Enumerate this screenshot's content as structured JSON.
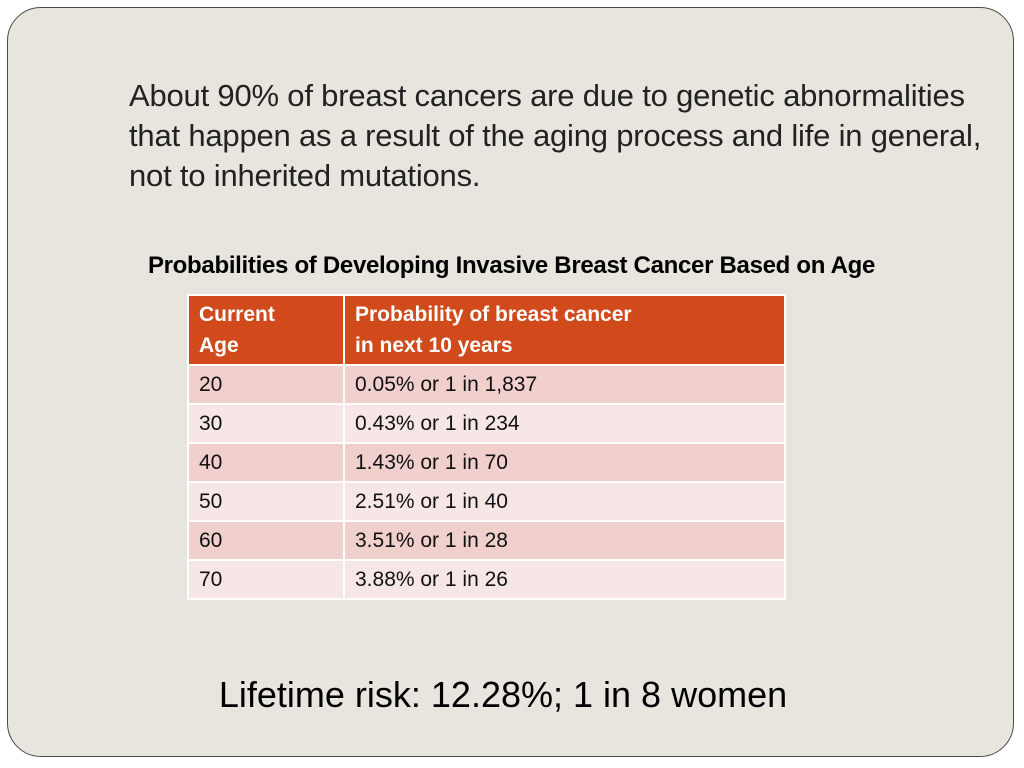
{
  "intro_text": "About 90% of breast cancers are due to genetic abnormalities that happen as a result of the aging process and life in general, not to inherited mutations.",
  "table": {
    "title": "Probabilities of Developing Invasive Breast Cancer Based on Age",
    "header_color": "#d04a1c",
    "headers": {
      "age_line1": "Current",
      "age_line2": "Age",
      "prob_line1": "Probability of breast cancer",
      "prob_line2": "in next 10 years"
    },
    "rows": [
      {
        "age": "20",
        "probability": "0.05%  or  1 in 1,837"
      },
      {
        "age": "30",
        "probability": "0.43%  or  1 in 234"
      },
      {
        "age": "40",
        "probability": "1.43%  or  1 in 70"
      },
      {
        "age": "50",
        "probability": "2.51%  or  1 in 40"
      },
      {
        "age": "60",
        "probability": "3.51%  or  1 in 28"
      },
      {
        "age": "70",
        "probability": "3.88%  or  1 in 26"
      }
    ]
  },
  "lifetime_risk": "Lifetime risk: 12.28%; 1 in 8 women"
}
